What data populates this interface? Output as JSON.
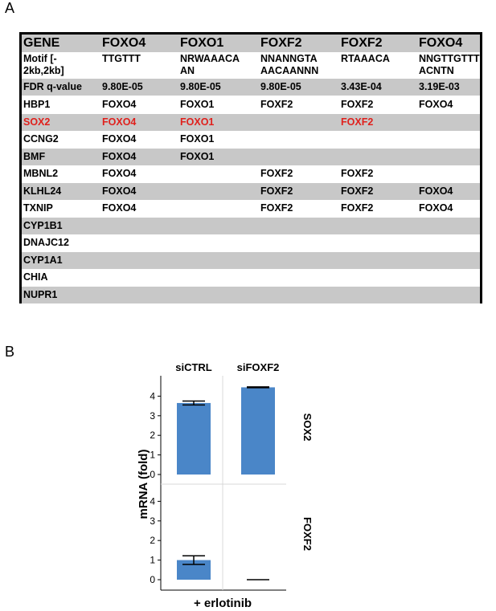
{
  "panel_a_label": "A",
  "panel_b_label": "B",
  "table": {
    "header": [
      "GENE",
      "FOXO4",
      "FOXO1",
      "FOXF2",
      "FOXF2",
      "FOXO4"
    ],
    "motif": [
      "Motif [-\n2kb,2kb]",
      "TTGTTT",
      "NRWAAACA\nAN",
      "NNANNGTA\nAACAANNN",
      "RTAAACA",
      "NNGTTGTTT\nACNTN"
    ],
    "fdr": [
      "FDR q-value",
      "9.80E-05",
      "9.80E-05",
      "9.80E-05",
      "3.43E-04",
      "3.19E-03"
    ],
    "genes": [
      {
        "cells": [
          "HBP1",
          "FOXO4",
          "FOXO1",
          "FOXF2",
          "FOXF2",
          "FOXO4"
        ],
        "highlight": false
      },
      {
        "cells": [
          "SOX2",
          "FOXO4",
          "FOXO1",
          "",
          "FOXF2",
          ""
        ],
        "highlight": true
      },
      {
        "cells": [
          "CCNG2",
          "FOXO4",
          "FOXO1",
          "",
          "",
          ""
        ],
        "highlight": false
      },
      {
        "cells": [
          "BMF",
          "FOXO4",
          "FOXO1",
          "",
          "",
          ""
        ],
        "highlight": false
      },
      {
        "cells": [
          "MBNL2",
          "FOXO4",
          "",
          "FOXF2",
          "FOXF2",
          ""
        ],
        "highlight": false
      },
      {
        "cells": [
          "KLHL24",
          "FOXO4",
          "",
          "FOXF2",
          "FOXF2",
          "FOXO4"
        ],
        "highlight": false
      },
      {
        "cells": [
          "TXNIP",
          "FOXO4",
          "",
          "FOXF2",
          "FOXF2",
          "FOXO4"
        ],
        "highlight": false
      },
      {
        "cells": [
          "CYP1B1",
          "",
          "",
          "",
          "",
          ""
        ],
        "highlight": false
      },
      {
        "cells": [
          "DNAJC12",
          "",
          "",
          "",
          "",
          ""
        ],
        "highlight": false
      },
      {
        "cells": [
          "CYP1A1",
          "",
          "",
          "",
          "",
          ""
        ],
        "highlight": false
      },
      {
        "cells": [
          "CHIA",
          "",
          "",
          "",
          "",
          ""
        ],
        "highlight": false
      },
      {
        "cells": [
          "NUPR1",
          "",
          "",
          "",
          "",
          ""
        ],
        "highlight": false
      }
    ],
    "highlight_color": "#e0201c",
    "shade_color": "#c8c8c8"
  },
  "chart_data": {
    "type": "bar",
    "categories": [
      "siCTRL",
      "siFOXF2"
    ],
    "ylabel": "mRNA (fold)",
    "xlabel": "+ erlotinib",
    "ylim": [
      0,
      4.6
    ],
    "yticks": [
      0,
      1,
      2,
      3,
      4
    ],
    "bar_color": "#4a86c8",
    "panels": [
      {
        "facet_label": "SOX2",
        "values": [
          3.65,
          4.45
        ],
        "errors": [
          0.1,
          0.02
        ]
      },
      {
        "facet_label": "FOXF2",
        "values": [
          1.0,
          0.0
        ],
        "errors": [
          0.22,
          0.0
        ]
      }
    ]
  }
}
